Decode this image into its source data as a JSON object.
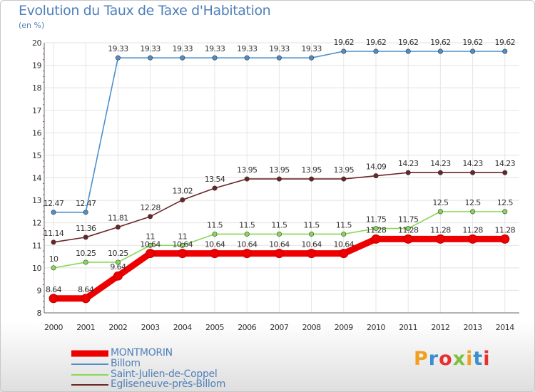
{
  "header": {
    "title": "Evolution du Taux de Taxe d'Habitation",
    "subtitle": "(en %)"
  },
  "brand": {
    "logo_text": "Proxiti",
    "colors": [
      "#f0a020",
      "#3a8fd0",
      "#e83030",
      "#7cc040",
      "#f0a020",
      "#3a8fd0",
      "#e83030"
    ]
  },
  "chart_data": {
    "type": "line",
    "title": "Evolution du Taux de Taxe d'Habitation",
    "subtitle": "(en %)",
    "xlabel": "",
    "ylabel": "(en %)",
    "x": [
      "2000",
      "2001",
      "2002",
      "2003",
      "2004",
      "2005",
      "2006",
      "2007",
      "2008",
      "2009",
      "2010",
      "2011",
      "2012",
      "2013",
      "2014"
    ],
    "ylim": [
      8,
      20
    ],
    "yticks": [
      8,
      9,
      10,
      11,
      12,
      13,
      14,
      15,
      16,
      17,
      18,
      19,
      20
    ],
    "grid": true,
    "legend_placement": "bottom-left",
    "series": [
      {
        "name": "MONTMORIN",
        "color": "#ee0000",
        "emphasis": true,
        "values": [
          8.64,
          8.64,
          9.64,
          10.64,
          10.64,
          10.64,
          10.64,
          10.64,
          10.64,
          10.64,
          11.28,
          11.28,
          11.28,
          11.28,
          11.28
        ],
        "labels": [
          "8.64",
          "8.64",
          "9.64",
          "10.64",
          "10.64",
          "10.64",
          "10.64",
          "10.64",
          "10.64",
          "10.64",
          "11.28",
          "11.28",
          "11.28",
          "11.28",
          "11.28"
        ]
      },
      {
        "name": "Billom",
        "color": "#4f90cb",
        "emphasis": false,
        "values": [
          12.47,
          12.47,
          19.33,
          19.33,
          19.33,
          19.33,
          19.33,
          19.33,
          19.33,
          19.62,
          19.62,
          19.62,
          19.62,
          19.62,
          19.62
        ],
        "labels": [
          "12.47",
          "12.47",
          "19.33",
          "19.33",
          "19.33",
          "19.33",
          "19.33",
          "19.33",
          "19.33",
          "19.62",
          "19.62",
          "19.62",
          "19.62",
          "19.62",
          "19.62"
        ]
      },
      {
        "name": "Saint-Julien-de-Coppel",
        "color": "#88d858",
        "emphasis": false,
        "values": [
          10,
          10.25,
          10.25,
          11,
          11,
          11.5,
          11.5,
          11.5,
          11.5,
          11.5,
          11.75,
          11.75,
          12.5,
          12.5,
          12.5
        ],
        "labels": [
          "10",
          "10.25",
          "10.25",
          "11",
          "11",
          "11.5",
          "11.5",
          "11.5",
          "11.5",
          "11.5",
          "11.75",
          "11.75",
          "12.5",
          "12.5",
          "12.5"
        ]
      },
      {
        "name": "Egliseneuve-près-Billom",
        "color": "#6a2626",
        "emphasis": false,
        "values": [
          11.14,
          11.36,
          11.81,
          12.28,
          13.02,
          13.54,
          13.95,
          13.95,
          13.95,
          13.95,
          14.09,
          14.23,
          14.23,
          14.23,
          14.23
        ],
        "labels": [
          "11.14",
          "11.36",
          "11.81",
          "12.28",
          "13.02",
          "13.54",
          "13.95",
          "13.95",
          "13.95",
          "13.95",
          "14.09",
          "14.23",
          "14.23",
          "14.23",
          "14.23"
        ]
      }
    ]
  }
}
